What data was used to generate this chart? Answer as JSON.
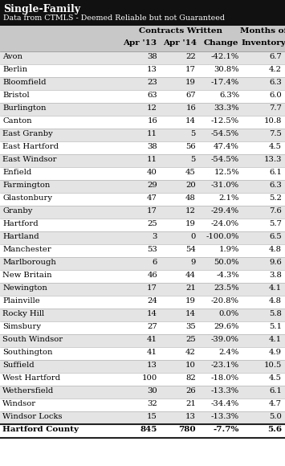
{
  "title1": "Single-Family",
  "title2": "Data from CTMLS - Deemed Reliable but not Guaranteed",
  "group_header": "Contracts Written",
  "months_of": "Months of",
  "inventory_label": "Inventory",
  "towns": [
    "Avon",
    "Berlin",
    "Bloomfield",
    "Bristol",
    "Burlington",
    "Canton",
    "East Granby",
    "East Hartford",
    "East Windsor",
    "Enfield",
    "Farmington",
    "Glastonbury",
    "Granby",
    "Hartford",
    "Hartland",
    "Manchester",
    "Marlborough",
    "New Britain",
    "Newington",
    "Plainville",
    "Rocky Hill",
    "Simsbury",
    "South Windsor",
    "Southington",
    "Suffield",
    "West Hartford",
    "Wethersfield",
    "Windsor",
    "Windsor Locks"
  ],
  "apr13": [
    38,
    13,
    23,
    63,
    12,
    16,
    11,
    38,
    11,
    40,
    29,
    47,
    17,
    25,
    3,
    53,
    6,
    46,
    17,
    24,
    14,
    27,
    41,
    41,
    13,
    100,
    30,
    32,
    15
  ],
  "apr14": [
    22,
    17,
    19,
    67,
    16,
    14,
    5,
    56,
    5,
    45,
    20,
    48,
    12,
    19,
    0,
    54,
    9,
    44,
    21,
    19,
    14,
    35,
    25,
    42,
    10,
    82,
    26,
    21,
    13
  ],
  "change": [
    "-42.1%",
    "30.8%",
    "-17.4%",
    "6.3%",
    "33.3%",
    "-12.5%",
    "-54.5%",
    "47.4%",
    "-54.5%",
    "12.5%",
    "-31.0%",
    "2.1%",
    "-29.4%",
    "-24.0%",
    "-100.0%",
    "1.9%",
    "50.0%",
    "-4.3%",
    "23.5%",
    "-20.8%",
    "0.0%",
    "29.6%",
    "-39.0%",
    "2.4%",
    "-23.1%",
    "-18.0%",
    "-13.3%",
    "-34.4%",
    "-13.3%"
  ],
  "inventory": [
    "6.7",
    "4.2",
    "6.3",
    "6.0",
    "7.7",
    "10.8",
    "7.5",
    "4.5",
    "13.3",
    "6.1",
    "6.3",
    "5.2",
    "7.6",
    "5.7",
    "6.5",
    "4.8",
    "9.6",
    "3.8",
    "4.1",
    "4.8",
    "5.8",
    "5.1",
    "4.1",
    "4.9",
    "10.5",
    "4.5",
    "6.1",
    "4.7",
    "5.0"
  ],
  "total_town": "Hartford County",
  "total_apr13": "845",
  "total_apr14": "780",
  "total_change": "-7.7%",
  "total_inventory": "5.6",
  "header_bg": "#111111",
  "header_text": "#ffffff",
  "subheader_bg": "#c8c8c8",
  "row_even_bg": "#ffffff",
  "row_odd_bg": "#e4e4e4",
  "total_bg": "#ffffff",
  "border_color": "#aaaaaa",
  "text_color": "#000000",
  "font_family": "DejaVu Serif"
}
